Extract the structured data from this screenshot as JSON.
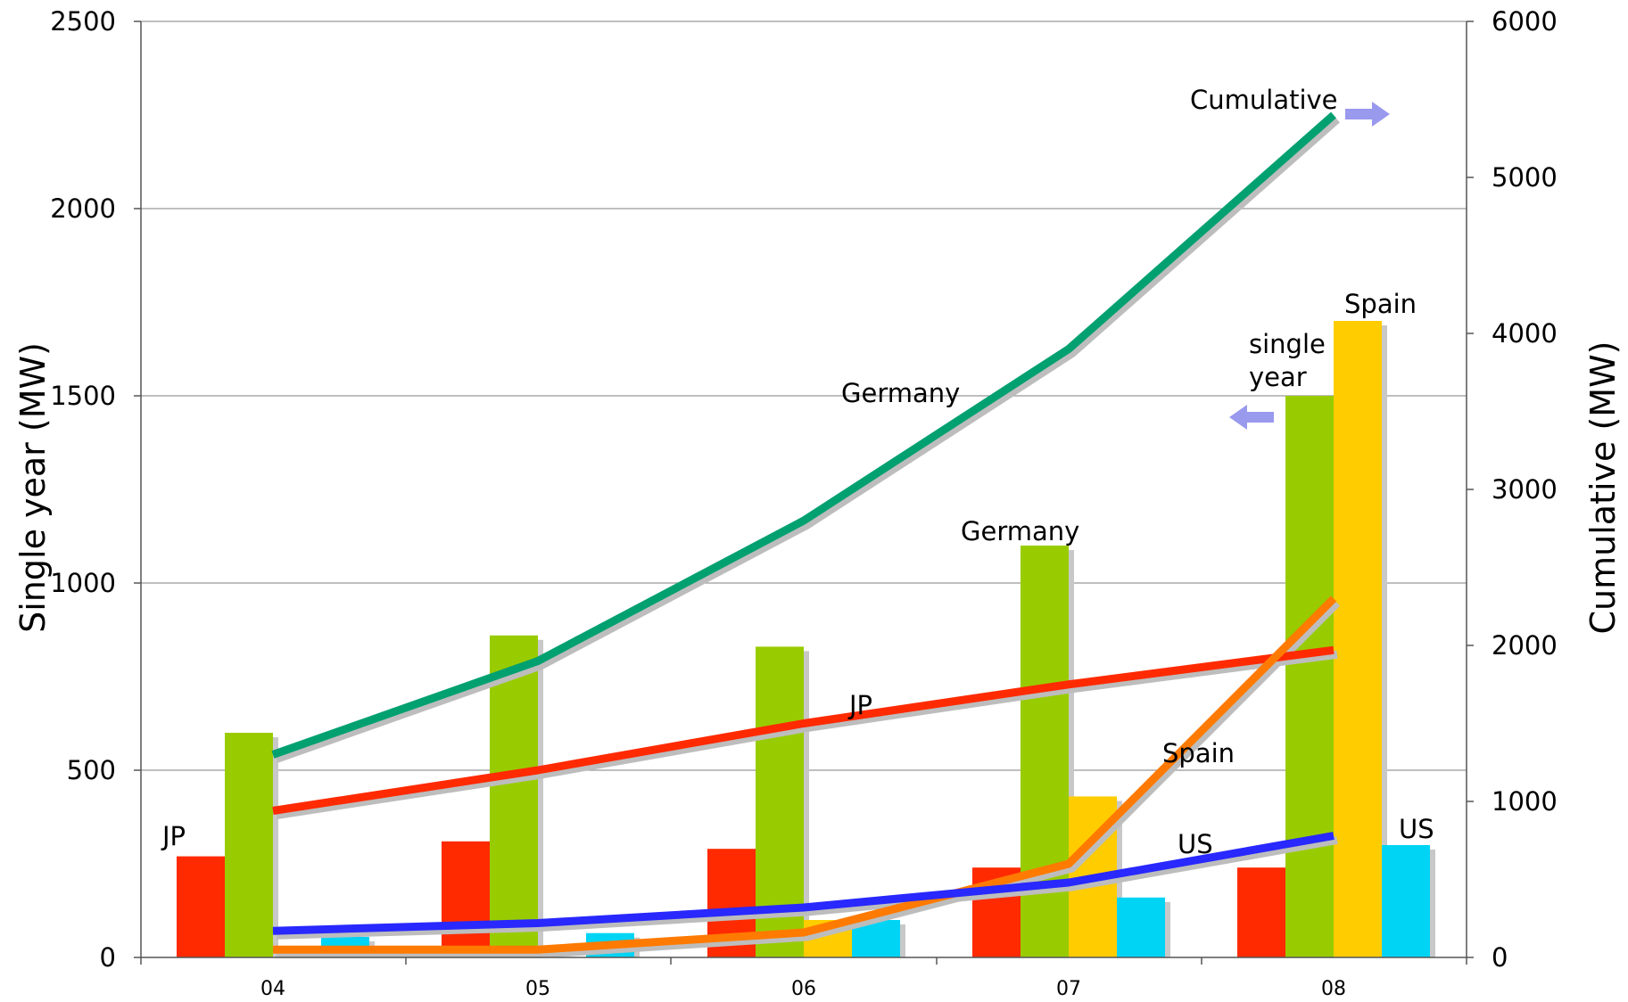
{
  "chart_data": {
    "type": "bar",
    "categories": [
      "04",
      "05",
      "06",
      "07",
      "08"
    ],
    "ylabel": "Single year (MW)",
    "ylabel_right": "Cumulative (MW)",
    "ylim": [
      0,
      2500
    ],
    "ylim_right": [
      0,
      6000
    ],
    "yticks": [
      0,
      500,
      1000,
      1500,
      2000,
      2500
    ],
    "yticks_right": [
      0,
      1000,
      2000,
      3000,
      4000,
      5000,
      6000
    ],
    "grid": true,
    "bar_series": [
      {
        "name": "JP",
        "color": "#ff2a00",
        "values": [
          270,
          310,
          290,
          240,
          240
        ]
      },
      {
        "name": "Germany",
        "color": "#99cc00",
        "values": [
          600,
          860,
          830,
          1100,
          1500
        ]
      },
      {
        "name": "Spain",
        "color": "#ffcc00",
        "values": [
          0,
          0,
          100,
          430,
          1700
        ]
      },
      {
        "name": "US",
        "color": "#00d4f5",
        "values": [
          55,
          65,
          100,
          160,
          300
        ]
      }
    ],
    "line_series": [
      {
        "name": "Germany",
        "color": "#00a070",
        "axis": "right",
        "values": [
          1300,
          1900,
          2800,
          3900,
          5400
        ]
      },
      {
        "name": "JP",
        "color": "#ff2a00",
        "axis": "right",
        "values": [
          940,
          1200,
          1500,
          1750,
          1970
        ]
      },
      {
        "name": "Spain",
        "color": "#ff7a00",
        "axis": "right",
        "values": [
          50,
          50,
          160,
          600,
          2300
        ]
      },
      {
        "name": "US",
        "color": "#2828ff",
        "axis": "right",
        "values": [
          170,
          220,
          320,
          480,
          780
        ]
      }
    ],
    "annotations": {
      "jp_bar": "JP",
      "germany_bar": "Germany",
      "spain_bar": "Spain",
      "us_bar": "US",
      "germany_line": "Germany",
      "jp_line": "JP",
      "spain_line": "Spain",
      "us_line": "US",
      "cumulative_right": "Cumulative",
      "single_year_1": "single",
      "single_year_2": "year"
    },
    "arrow_color": "#9999ee"
  }
}
